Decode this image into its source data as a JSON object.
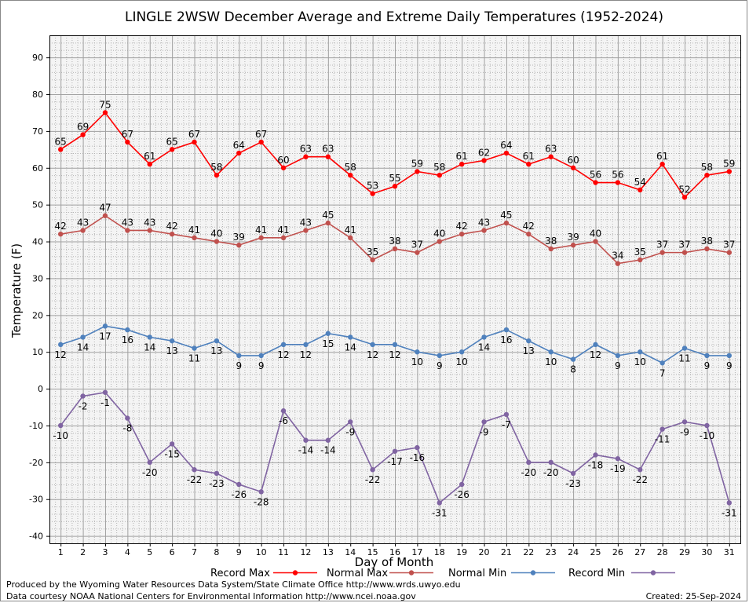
{
  "chart_data": {
    "type": "line",
    "title": "LINGLE 2WSW December Average and Extreme Daily Temperatures (1952-2024)",
    "xlabel": "Day of Month",
    "ylabel": "Temperature (F)",
    "ylim": [
      -42,
      96
    ],
    "xlim": [
      0.5,
      31.5
    ],
    "yticks": [
      -40,
      -30,
      -20,
      -10,
      0,
      10,
      20,
      30,
      40,
      50,
      60,
      70,
      80,
      90
    ],
    "x": [
      1,
      2,
      3,
      4,
      5,
      6,
      7,
      8,
      9,
      10,
      11,
      12,
      13,
      14,
      15,
      16,
      17,
      18,
      19,
      20,
      21,
      22,
      23,
      24,
      25,
      26,
      27,
      28,
      29,
      30,
      31
    ],
    "grid": true,
    "legend_position": "bottom",
    "series": [
      {
        "name": "Record Max",
        "color": "#ff0000",
        "label_pos": "above",
        "values": [
          65,
          69,
          75,
          67,
          61,
          65,
          67,
          58,
          64,
          67,
          60,
          63,
          63,
          58,
          53,
          55,
          59,
          58,
          61,
          62,
          64,
          61,
          63,
          60,
          56,
          56,
          54,
          61,
          52,
          58,
          59
        ]
      },
      {
        "name": "Normal Max",
        "color": "#c0504d",
        "label_pos": "above",
        "values": [
          42,
          43,
          47,
          43,
          43,
          42,
          41,
          40,
          39,
          41,
          41,
          43,
          45,
          41,
          35,
          38,
          37,
          40,
          42,
          43,
          45,
          42,
          38,
          39,
          40,
          34,
          35,
          37,
          37,
          38,
          37
        ]
      },
      {
        "name": "Normal Min",
        "color": "#4f81bd",
        "label_pos": "below",
        "values": [
          12,
          14,
          17,
          16,
          14,
          13,
          11,
          13,
          9,
          9,
          12,
          12,
          15,
          14,
          12,
          12,
          10,
          9,
          10,
          14,
          16,
          13,
          10,
          8,
          12,
          9,
          10,
          7,
          11,
          9,
          9
        ]
      },
      {
        "name": "Record Min",
        "color": "#8064a2",
        "label_pos": "below",
        "values": [
          -10,
          -2,
          -1,
          -8,
          -20,
          -15,
          -22,
          -23,
          -26,
          -28,
          -6,
          -14,
          -14,
          -9,
          -22,
          -17,
          -16,
          -31,
          -26,
          -9,
          -7,
          -20,
          -20,
          -23,
          -18,
          -19,
          -22,
          -11,
          -9,
          -10,
          -31
        ]
      }
    ]
  },
  "footer": {
    "produced_by": "Produced by the Wyoming Water Resources Data System/State Climate Office http://www.wrds.uwyo.edu",
    "courtesy": "Data courtesy NOAA National Centers for Environmental Information http://www.ncei.noaa.gov",
    "created": "Created:  25-Sep-2024"
  }
}
